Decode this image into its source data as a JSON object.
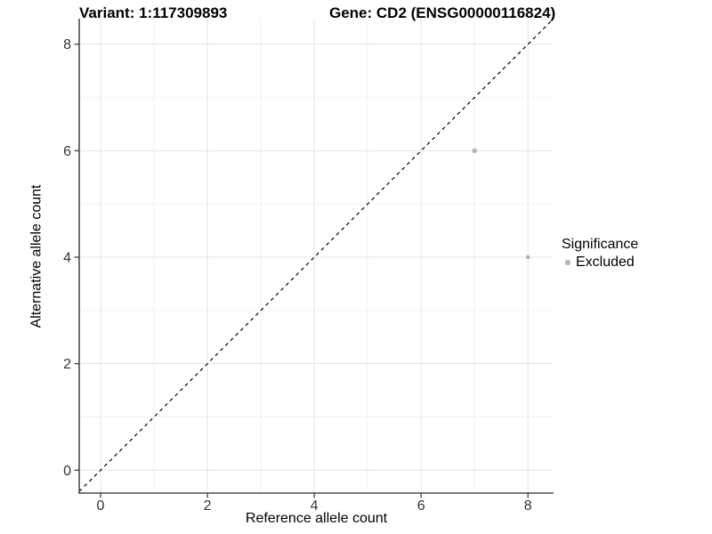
{
  "header": {
    "variant_title": "Variant: 1:117309893",
    "gene_title": "Gene: CD2 (ENSG00000116824)"
  },
  "chart_data": {
    "type": "scatter",
    "title_left": "Variant: 1:117309893",
    "title_right": "Gene: CD2 (ENSG00000116824)",
    "xlabel": "Reference allele count",
    "ylabel": "Alternative allele count",
    "xlim": [
      -0.4,
      8.48
    ],
    "ylim": [
      -0.43,
      8.48
    ],
    "x_ticks": [
      0,
      2,
      4,
      6,
      8
    ],
    "y_ticks": [
      0,
      2,
      4,
      6,
      8
    ],
    "x_minor_ticks": [
      1,
      3,
      5,
      7
    ],
    "y_minor_ticks": [
      1,
      3,
      5,
      7
    ],
    "grid": "major+minor",
    "points": [
      {
        "x": 7,
        "y": 6,
        "significance": "Excluded",
        "radius_px": 2.7
      },
      {
        "x": 8,
        "y": 4,
        "significance": "Excluded",
        "radius_px": 2.3
      }
    ],
    "reference_line": {
      "slope": 1,
      "intercept": 0,
      "style": "dashed",
      "color": "#000000"
    },
    "colors": {
      "point": "#b3b3b3",
      "grid_major": "#e4e4e4",
      "grid_minor": "#f1f1f1",
      "axis_line": "#4d4d4d",
      "tick": "#333333",
      "tick_label": "#333333"
    },
    "legend": {
      "position": "right",
      "title": "Significance",
      "entries": [
        {
          "label": "Excluded",
          "color": "#b3b3b3"
        }
      ]
    }
  }
}
